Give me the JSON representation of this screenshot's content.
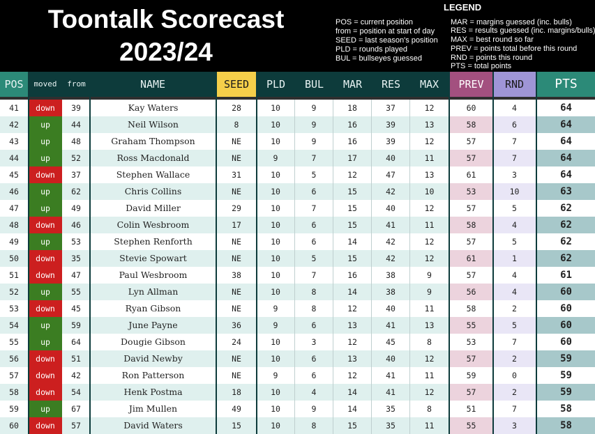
{
  "header": {
    "title_line1": "Toontalk Scorecast",
    "title_line2": "2023/24",
    "legend_title": "LEGEND",
    "legend_left": [
      "POS = current position",
      "from = position at start of day",
      "SEED = last season's position",
      "PLD = rounds played",
      "BUL = bullseyes guessed"
    ],
    "legend_right": [
      "MAR = margins guessed (inc. bulls)",
      "RES = results guessed (inc. margins/bulls)",
      "MAX = best round so far",
      "PREV = points total before this round",
      "RND = points this round",
      "PTS = total points"
    ]
  },
  "columns": {
    "pos": "POS",
    "moved": "moved",
    "from": "from",
    "name": "NAME",
    "seed": "SEED",
    "pld": "PLD",
    "bul": "BUL",
    "mar": "MAR",
    "res": "RES",
    "max": "MAX",
    "prev": "PREV",
    "rnd": "RND",
    "pts": "PTS"
  },
  "colors": {
    "up": "#3b7d22",
    "down": "#cc1f1f",
    "header_bg": "#0d3b3b",
    "seed": "#f5cf4a",
    "prev": "#a3507f",
    "rnd": "#9f95d6",
    "pts": "#2c8a78"
  },
  "rows": [
    {
      "pos": "41",
      "moved": "down",
      "from": "39",
      "name": "Kay Waters",
      "seed": "28",
      "pld": "10",
      "bul": "9",
      "mar": "18",
      "res": "37",
      "max": "12",
      "prev": "60",
      "rnd": "4",
      "pts": "64"
    },
    {
      "pos": "42",
      "moved": "up",
      "from": "44",
      "name": "Neil Wilson",
      "seed": "8",
      "pld": "10",
      "bul": "9",
      "mar": "16",
      "res": "39",
      "max": "13",
      "prev": "58",
      "rnd": "6",
      "pts": "64"
    },
    {
      "pos": "43",
      "moved": "up",
      "from": "48",
      "name": "Graham Thompson",
      "seed": "NE",
      "pld": "10",
      "bul": "9",
      "mar": "16",
      "res": "39",
      "max": "12",
      "prev": "57",
      "rnd": "7",
      "pts": "64"
    },
    {
      "pos": "44",
      "moved": "up",
      "from": "52",
      "name": "Ross Macdonald",
      "seed": "NE",
      "pld": "9",
      "bul": "7",
      "mar": "17",
      "res": "40",
      "max": "11",
      "prev": "57",
      "rnd": "7",
      "pts": "64"
    },
    {
      "pos": "45",
      "moved": "down",
      "from": "37",
      "name": "Stephen Wallace",
      "seed": "31",
      "pld": "10",
      "bul": "5",
      "mar": "12",
      "res": "47",
      "max": "13",
      "prev": "61",
      "rnd": "3",
      "pts": "64"
    },
    {
      "pos": "46",
      "moved": "up",
      "from": "62",
      "name": "Chris Collins",
      "seed": "NE",
      "pld": "10",
      "bul": "6",
      "mar": "15",
      "res": "42",
      "max": "10",
      "prev": "53",
      "rnd": "10",
      "pts": "63"
    },
    {
      "pos": "47",
      "moved": "up",
      "from": "49",
      "name": "David Miller",
      "seed": "29",
      "pld": "10",
      "bul": "7",
      "mar": "15",
      "res": "40",
      "max": "12",
      "prev": "57",
      "rnd": "5",
      "pts": "62"
    },
    {
      "pos": "48",
      "moved": "down",
      "from": "46",
      "name": "Colin Wesbroom",
      "seed": "17",
      "pld": "10",
      "bul": "6",
      "mar": "15",
      "res": "41",
      "max": "11",
      "prev": "58",
      "rnd": "4",
      "pts": "62"
    },
    {
      "pos": "49",
      "moved": "up",
      "from": "53",
      "name": "Stephen Renforth",
      "seed": "NE",
      "pld": "10",
      "bul": "6",
      "mar": "14",
      "res": "42",
      "max": "12",
      "prev": "57",
      "rnd": "5",
      "pts": "62"
    },
    {
      "pos": "50",
      "moved": "down",
      "from": "35",
      "name": "Stevie Spowart",
      "seed": "NE",
      "pld": "10",
      "bul": "5",
      "mar": "15",
      "res": "42",
      "max": "12",
      "prev": "61",
      "rnd": "1",
      "pts": "62"
    },
    {
      "pos": "51",
      "moved": "down",
      "from": "47",
      "name": "Paul Wesbroom",
      "seed": "38",
      "pld": "10",
      "bul": "7",
      "mar": "16",
      "res": "38",
      "max": "9",
      "prev": "57",
      "rnd": "4",
      "pts": "61"
    },
    {
      "pos": "52",
      "moved": "up",
      "from": "55",
      "name": "Lyn Allman",
      "seed": "NE",
      "pld": "10",
      "bul": "8",
      "mar": "14",
      "res": "38",
      "max": "9",
      "prev": "56",
      "rnd": "4",
      "pts": "60"
    },
    {
      "pos": "53",
      "moved": "down",
      "from": "45",
      "name": "Ryan Gibson",
      "seed": "NE",
      "pld": "9",
      "bul": "8",
      "mar": "12",
      "res": "40",
      "max": "11",
      "prev": "58",
      "rnd": "2",
      "pts": "60"
    },
    {
      "pos": "54",
      "moved": "up",
      "from": "59",
      "name": "June Payne",
      "seed": "36",
      "pld": "9",
      "bul": "6",
      "mar": "13",
      "res": "41",
      "max": "13",
      "prev": "55",
      "rnd": "5",
      "pts": "60"
    },
    {
      "pos": "55",
      "moved": "up",
      "from": "64",
      "name": "Dougie Gibson",
      "seed": "24",
      "pld": "10",
      "bul": "3",
      "mar": "12",
      "res": "45",
      "max": "8",
      "prev": "53",
      "rnd": "7",
      "pts": "60"
    },
    {
      "pos": "56",
      "moved": "down",
      "from": "51",
      "name": "David Newby",
      "seed": "NE",
      "pld": "10",
      "bul": "6",
      "mar": "13",
      "res": "40",
      "max": "12",
      "prev": "57",
      "rnd": "2",
      "pts": "59"
    },
    {
      "pos": "57",
      "moved": "down",
      "from": "42",
      "name": "Ron Patterson",
      "seed": "NE",
      "pld": "9",
      "bul": "6",
      "mar": "12",
      "res": "41",
      "max": "11",
      "prev": "59",
      "rnd": "0",
      "pts": "59"
    },
    {
      "pos": "58",
      "moved": "down",
      "from": "54",
      "name": "Henk Postma",
      "seed": "18",
      "pld": "10",
      "bul": "4",
      "mar": "14",
      "res": "41",
      "max": "12",
      "prev": "57",
      "rnd": "2",
      "pts": "59"
    },
    {
      "pos": "59",
      "moved": "up",
      "from": "67",
      "name": "Jim Mullen",
      "seed": "49",
      "pld": "10",
      "bul": "9",
      "mar": "14",
      "res": "35",
      "max": "8",
      "prev": "51",
      "rnd": "7",
      "pts": "58"
    },
    {
      "pos": "60",
      "moved": "down",
      "from": "57",
      "name": "David Waters",
      "seed": "15",
      "pld": "10",
      "bul": "8",
      "mar": "15",
      "res": "35",
      "max": "11",
      "prev": "55",
      "rnd": "3",
      "pts": "58"
    }
  ]
}
